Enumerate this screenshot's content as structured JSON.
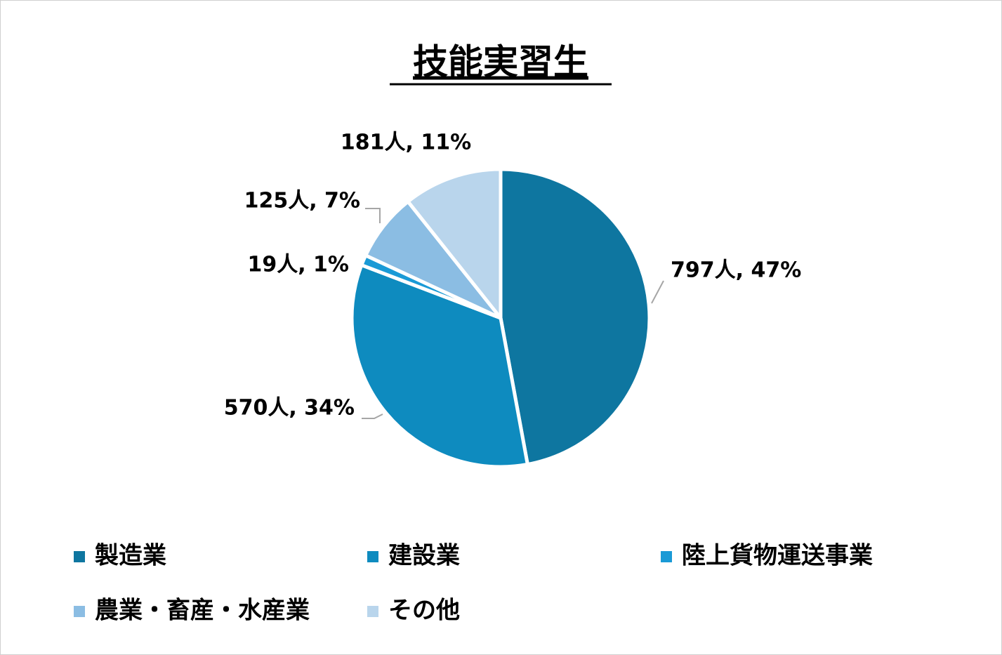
{
  "chart_data": {
    "type": "pie",
    "title": "技能実習生",
    "categories": [
      "製造業",
      "建設業",
      "陸上貨物運送事業",
      "農業・畜産・水産業",
      "その他"
    ],
    "values": [
      797,
      570,
      19,
      125,
      181
    ],
    "value_labels": [
      "797人, 47%",
      "570人, 34%",
      "19人, 1%",
      "125人, 7%",
      "181人, 11%"
    ],
    "colors": [
      "#0e76a0",
      "#0e8bbf",
      "#1a9ad6",
      "#8bbde3",
      "#b9d5ec"
    ],
    "legend": "bottom"
  }
}
